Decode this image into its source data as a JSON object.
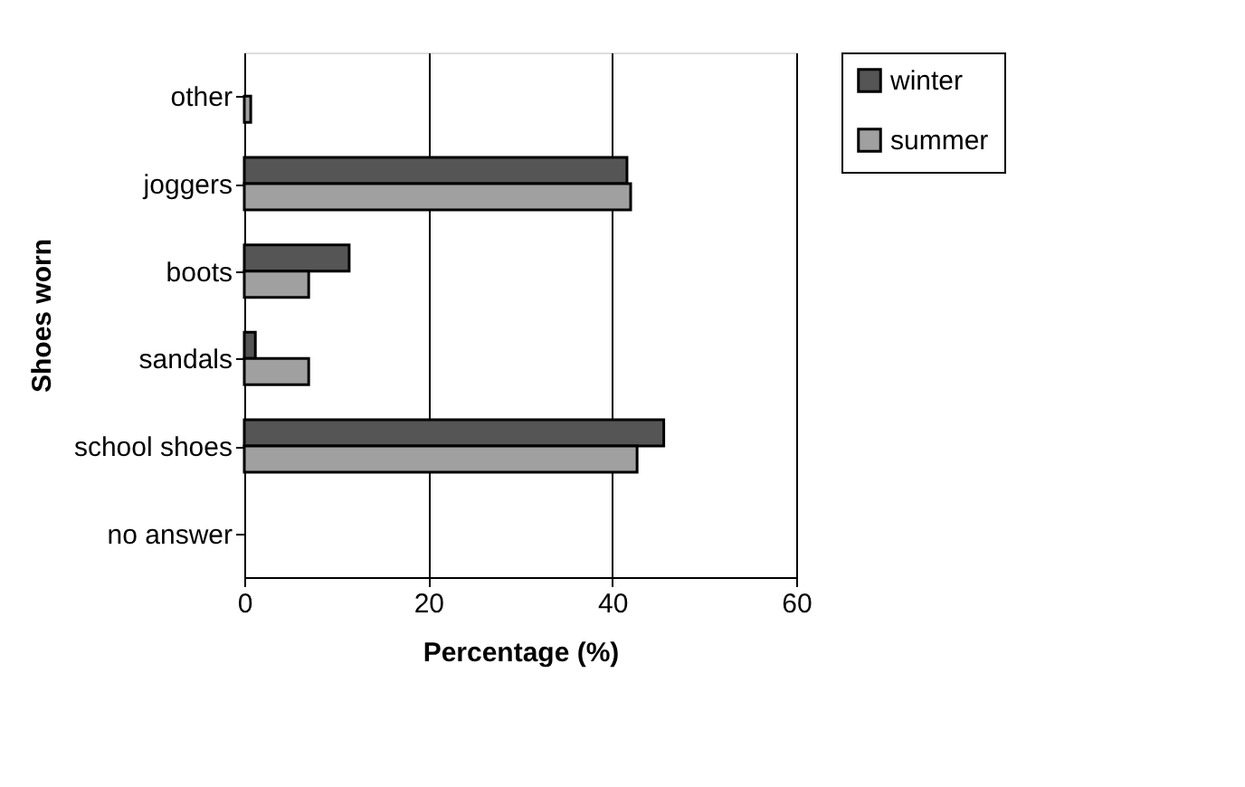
{
  "chart_data": {
    "type": "bar",
    "orientation": "horizontal",
    "ylabel": "Shoes worn",
    "xlabel": "Percentage (%)",
    "categories": [
      "other",
      "joggers",
      "boots",
      "sandals",
      "school shoes",
      "no answer"
    ],
    "series": [
      {
        "name": "winter",
        "color": "#555555",
        "values": [
          0,
          41.6,
          11.4,
          1.2,
          45.6,
          0
        ]
      },
      {
        "name": "summer",
        "color": "#a0a0a0",
        "values": [
          0.7,
          42.0,
          7.0,
          7.0,
          42.7,
          0
        ]
      }
    ],
    "xlim": [
      0,
      60
    ],
    "xticks": [
      0,
      20,
      40,
      60
    ],
    "grid": "x",
    "legend": "right"
  }
}
